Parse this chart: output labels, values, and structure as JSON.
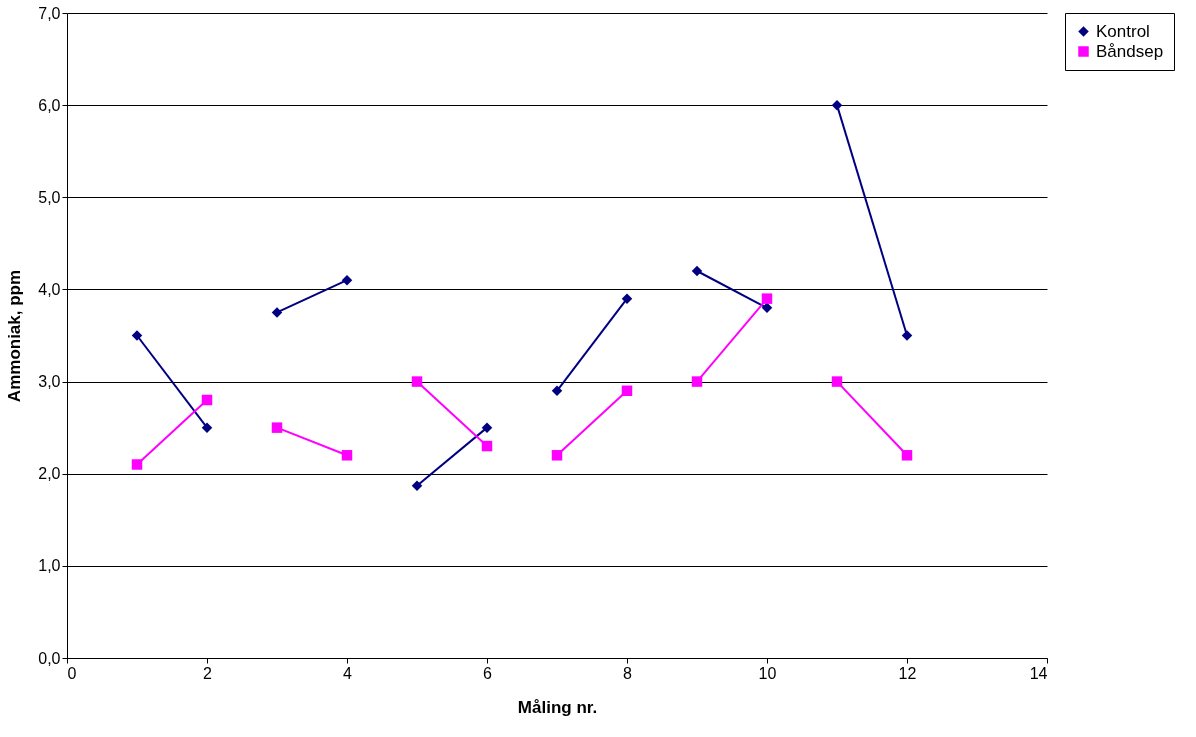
{
  "chart_data": {
    "type": "line",
    "xlabel": "Måling nr.",
    "ylabel": "Ammoniak, ppm",
    "xlim": [
      0,
      14
    ],
    "xticks": [
      0,
      2,
      4,
      6,
      8,
      10,
      12,
      14
    ],
    "ylim": [
      0,
      7
    ],
    "yticks": [
      {
        "value": 0,
        "label": "0,0"
      },
      {
        "value": 1,
        "label": "1,0"
      },
      {
        "value": 2,
        "label": "2,0"
      },
      {
        "value": 3,
        "label": "3,0"
      },
      {
        "value": 4,
        "label": "4,0"
      },
      {
        "value": 5,
        "label": "5,0"
      },
      {
        "value": 6,
        "label": "6,0"
      },
      {
        "value": 7,
        "label": "7,0"
      }
    ],
    "grid": "y",
    "legend": "right",
    "line_style": "solid",
    "series": [
      {
        "name": "Kontrol",
        "color": "#000080",
        "marker": "diamond",
        "x": [
          1,
          2
        ],
        "values": [
          3.5,
          2.5
        ]
      },
      {
        "color": "#000080",
        "marker": "diamond",
        "x": [
          3,
          4
        ],
        "values": [
          3.75,
          4.1
        ]
      },
      {
        "color": "#000080",
        "marker": "diamond",
        "x": [
          5,
          6
        ],
        "values": [
          1.87,
          2.5
        ]
      },
      {
        "color": "#000080",
        "marker": "diamond",
        "x": [
          7,
          8
        ],
        "values": [
          2.9,
          3.9
        ]
      },
      {
        "color": "#000080",
        "marker": "diamond",
        "x": [
          9,
          10
        ],
        "values": [
          4.2,
          3.8
        ]
      },
      {
        "color": "#000080",
        "marker": "diamond",
        "x": [
          11,
          12
        ],
        "values": [
          6.0,
          3.5
        ]
      },
      {
        "name": "Båndsep",
        "color": "#ff00ff",
        "marker": "square",
        "x": [
          1,
          2
        ],
        "values": [
          2.1,
          2.8
        ]
      },
      {
        "color": "#ff00ff",
        "marker": "square",
        "x": [
          3,
          4
        ],
        "values": [
          2.5,
          2.2
        ]
      },
      {
        "color": "#ff00ff",
        "marker": "square",
        "x": [
          5,
          6
        ],
        "values": [
          3.0,
          2.3
        ]
      },
      {
        "color": "#ff00ff",
        "marker": "square",
        "x": [
          7,
          8
        ],
        "values": [
          2.2,
          2.9
        ]
      },
      {
        "color": "#ff00ff",
        "marker": "square",
        "x": [
          9,
          10
        ],
        "values": [
          3.0,
          3.9
        ]
      },
      {
        "color": "#ff00ff",
        "marker": "square",
        "x": [
          11,
          12
        ],
        "values": [
          3.0,
          2.2
        ]
      }
    ]
  }
}
